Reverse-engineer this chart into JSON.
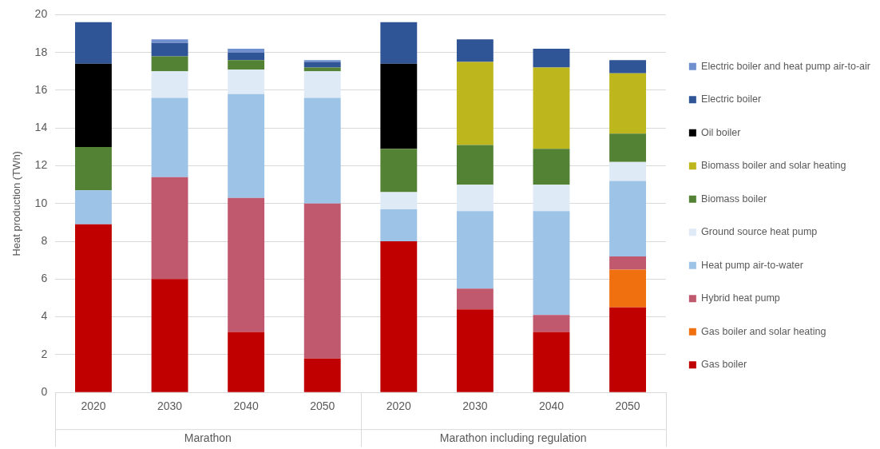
{
  "chart_data": {
    "type": "bar",
    "stacked": true,
    "ylabel": "Heat production (TWh)",
    "categories": [
      "2020",
      "2030",
      "2040",
      "2050",
      "2020",
      "2030",
      "2040",
      "2050"
    ],
    "annotations": [
      "Marathon",
      "Marathon including regulation"
    ],
    "ylim": [
      0,
      20
    ],
    "yticks": [
      0,
      2,
      4,
      6,
      8,
      10,
      12,
      14,
      16,
      18,
      20
    ],
    "grid": "y",
    "legend": "right",
    "series": [
      {
        "name": "Gas boiler",
        "color": "#c00000",
        "values": [
          8.9,
          6.0,
          3.2,
          1.8,
          8.0,
          4.4,
          3.2,
          4.5
        ]
      },
      {
        "name": "Gas boiler and solar heating",
        "color": "#f07010",
        "values": [
          null,
          null,
          null,
          null,
          null,
          null,
          null,
          2.0
        ]
      },
      {
        "name": "Hybrid heat pump",
        "color": "#c0586e",
        "values": [
          null,
          5.4,
          7.1,
          8.2,
          null,
          1.1,
          0.9,
          0.7
        ]
      },
      {
        "name": "Heat pump air-to-water",
        "color": "#9dc3e6",
        "values": [
          1.8,
          4.2,
          5.5,
          5.6,
          1.7,
          4.1,
          5.5,
          4.0
        ]
      },
      {
        "name": "Ground source heat pump",
        "color": "#deebf7",
        "values": [
          null,
          1.4,
          1.3,
          1.4,
          0.9,
          1.4,
          1.4,
          1.0
        ]
      },
      {
        "name": "Biomass boiler",
        "color": "#548235",
        "values": [
          2.3,
          0.8,
          0.5,
          0.2,
          2.3,
          2.1,
          1.9,
          1.5
        ]
      },
      {
        "name": "Biomass boiler and solar heating",
        "color": "#bdb61c",
        "values": [
          null,
          null,
          null,
          null,
          null,
          4.4,
          4.3,
          3.2
        ]
      },
      {
        "name": "Oil boiler",
        "color": "#000000",
        "values": [
          4.4,
          null,
          null,
          null,
          4.5,
          null,
          null,
          null
        ]
      },
      {
        "name": "Electric boiler",
        "color": "#2f5597",
        "values": [
          2.2,
          0.7,
          0.4,
          0.3,
          2.2,
          1.2,
          1.0,
          0.7
        ]
      },
      {
        "name": "Electric boiler and heat pump air-to-air",
        "color": "#6f8fcf",
        "values": [
          null,
          0.2,
          0.2,
          0.1,
          null,
          null,
          null,
          null
        ]
      }
    ]
  }
}
